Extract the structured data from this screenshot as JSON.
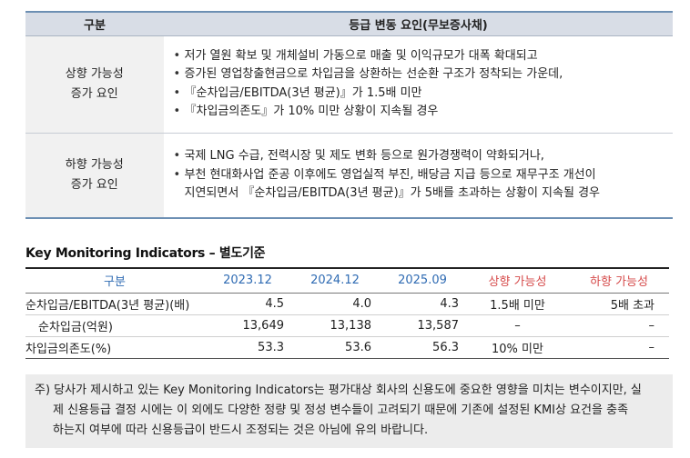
{
  "factor_table": {
    "header": {
      "col1": "구분",
      "col2": "등급 변동 요인(무보증사채)"
    },
    "upgrade": {
      "label_line1": "상향 가능성",
      "label_line2": "증가 요인",
      "bullets": [
        "저가 열원 확보 및 개체설비 가동으로 매출 및 이익규모가 대폭 확대되고",
        "증가된 영업창출현금으로 차입금을 상환하는 선순환 구조가 정착되는 가운데,",
        "『순차입금/EBITDA(3년 평균)』가 1.5배 미만",
        "『차입금의존도』가 10% 미만 상황이 지속될 경우"
      ]
    },
    "downgrade": {
      "label_line1": "하향 가능성",
      "label_line2": "증가 요인",
      "bullet1": "국제 LNG 수급, 전력시장 및 제도 변화 등으로 원가경쟁력이 약화되거나,",
      "bullet2_line1": "부천 현대화사업 준공 이후에도 영업실적 부진, 배당금 지급 등으로 재무구조 개선이",
      "bullet2_line2": "지연되면서 『순차입금/EBITDA(3년 평균)』가 5배를 초과하는 상황이 지속될 경우"
    }
  },
  "kmi": {
    "title": "Key Monitoring Indicators – 별도기준",
    "headers": [
      "구분",
      "2023.12",
      "2024.12",
      "2025.09",
      "상향 가능성",
      "하향 가능성"
    ],
    "rows": [
      {
        "label": "순차입금/EBITDA(3년 평균)(배)",
        "v1": "4.5",
        "v2": "4.0",
        "v3": "4.3",
        "up": "1.5배 미만",
        "down": "5배 초과"
      },
      {
        "label": "순차입금(억원)",
        "v1": "13,649",
        "v2": "13,138",
        "v3": "13,587",
        "up": "–",
        "down": "–"
      },
      {
        "label": "차입금의존도(%)",
        "v1": "53.3",
        "v2": "53.6",
        "v3": "56.3",
        "up": "10% 미만",
        "down": "–"
      }
    ]
  },
  "note": {
    "line1": "주) 당사가 제시하고 있는 Key Monitoring Indicators는 평가대상 회사의 신용도에 중요한 영향을 미치는 변수이지만, 실",
    "line2": "제 신용등급 결정 시에는 이 외에도 다양한 정량 및 정성 변수들이 고려되기 때문에 기존에 설정된 KMI상 요건을 충족",
    "line3": "하는지 여부에 따라 신용등급이 반드시 조정되는 것은 아님에 유의 바랍니다."
  }
}
